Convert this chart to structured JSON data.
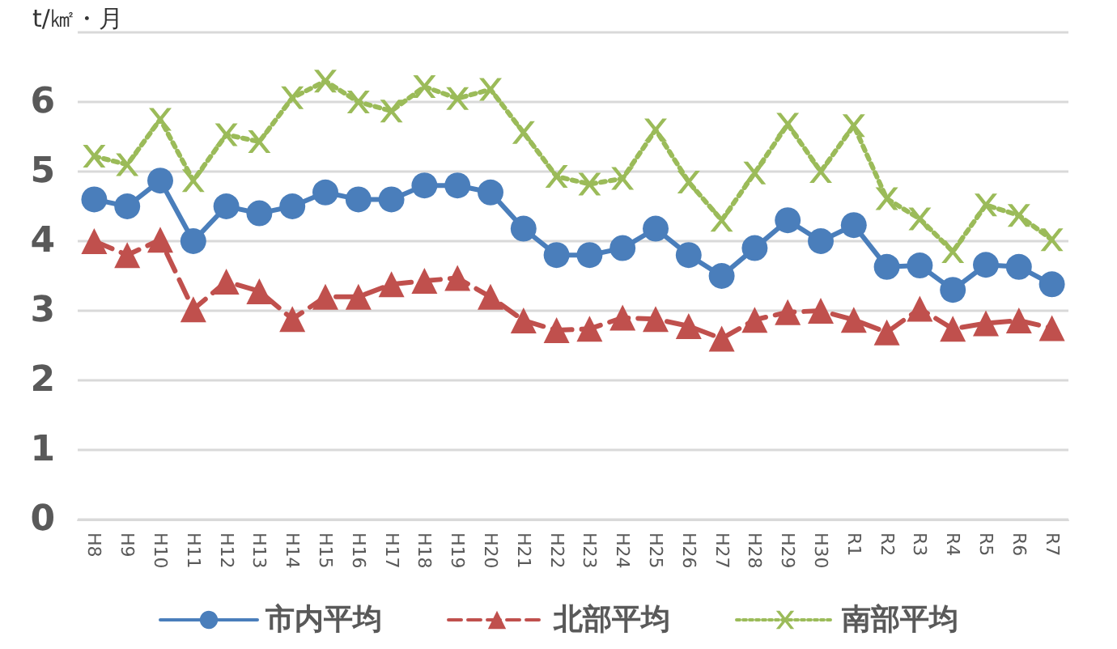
{
  "chart_data": {
    "type": "line",
    "ylabel": "t/㎢・月",
    "categories": [
      "H8",
      "H9",
      "H10",
      "H11",
      "H12",
      "H13",
      "H14",
      "H15",
      "H16",
      "H17",
      "H18",
      "H19",
      "H20",
      "H21",
      "H22",
      "H23",
      "H24",
      "H25",
      "H26",
      "H27",
      "H28",
      "H29",
      "H30",
      "R1",
      "R2",
      "R3",
      "R4",
      "R5",
      "R6",
      "R7"
    ],
    "series": [
      {
        "name": "市内平均",
        "color": "#4a7ebb",
        "marker": "circle",
        "line_style": "solid",
        "values": [
          4.6,
          4.5,
          4.87,
          4.0,
          4.5,
          4.4,
          4.5,
          4.7,
          4.6,
          4.6,
          4.8,
          4.8,
          4.7,
          4.18,
          3.8,
          3.8,
          3.9,
          4.18,
          3.8,
          3.5,
          3.9,
          4.3,
          4.0,
          4.23,
          3.63,
          3.65,
          3.3,
          3.66,
          3.63,
          3.38
        ]
      },
      {
        "name": "北部平均",
        "color": "#c0504d",
        "marker": "triangle",
        "line_style": "dashed",
        "values": [
          4.0,
          3.8,
          4.02,
          3.02,
          3.42,
          3.28,
          2.88,
          3.2,
          3.2,
          3.38,
          3.43,
          3.47,
          3.2,
          2.86,
          2.72,
          2.74,
          2.9,
          2.88,
          2.78,
          2.6,
          2.87,
          2.98,
          3.0,
          2.87,
          2.69,
          3.03,
          2.74,
          2.82,
          2.86,
          2.75
        ]
      },
      {
        "name": "南部平均",
        "color": "#9bbb59",
        "marker": "cross",
        "line_style": "dotted",
        "values": [
          5.22,
          5.1,
          5.75,
          4.87,
          5.53,
          5.43,
          6.06,
          6.3,
          6.0,
          5.87,
          6.22,
          6.05,
          6.18,
          5.56,
          4.93,
          4.82,
          4.9,
          5.6,
          4.85,
          4.3,
          4.98,
          5.68,
          5.0,
          5.66,
          4.61,
          4.32,
          3.85,
          4.52,
          4.37,
          4.02
        ]
      }
    ],
    "ylim": [
      0,
      7
    ],
    "yticks": [
      0,
      1,
      2,
      3,
      4,
      5,
      6,
      {
        "value": 7,
        "label": null
      }
    ],
    "grid": "y",
    "legend": "bottom"
  }
}
